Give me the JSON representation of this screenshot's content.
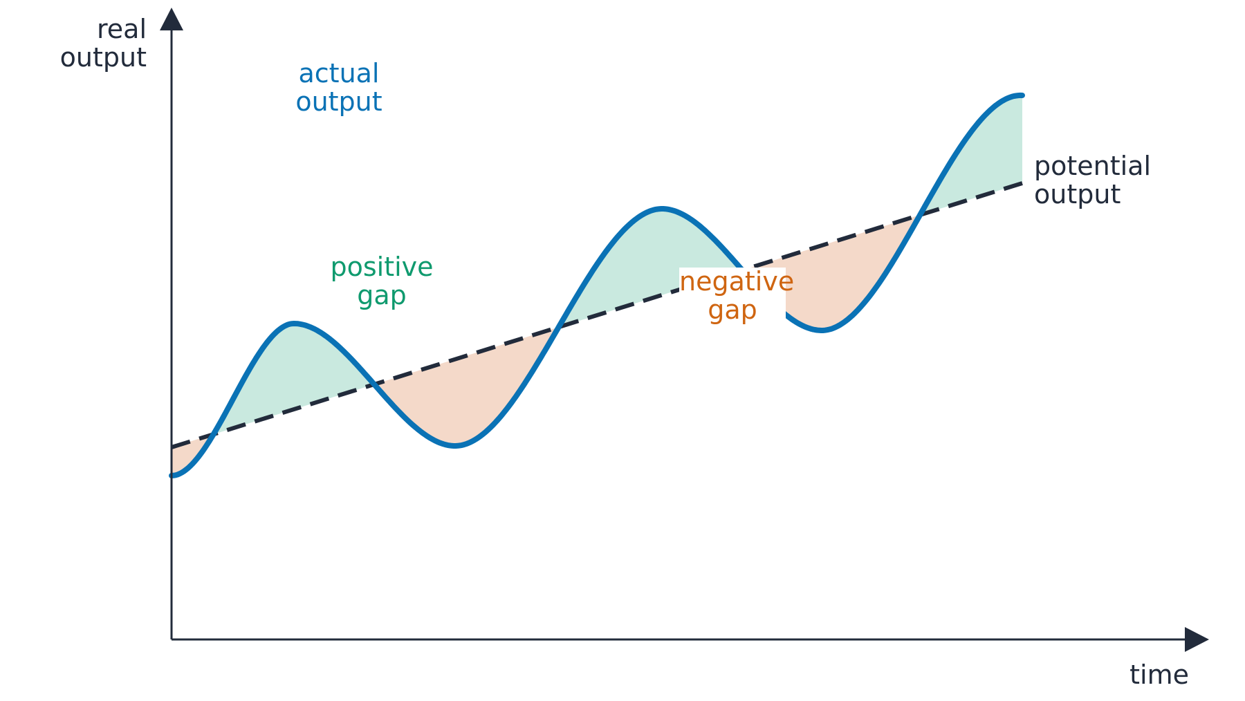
{
  "diagram": {
    "y_axis_label": [
      "real",
      "output"
    ],
    "x_axis_label": "time",
    "curves": {
      "actual_output": {
        "label": [
          "actual",
          "output"
        ],
        "color": "#0a72b5",
        "style": "solid",
        "shape": "oscillating wave around an upward trend"
      },
      "potential_output": {
        "label": [
          "potential",
          "output"
        ],
        "color": "#222b3b",
        "style": "dashed",
        "shape": "straight upward line"
      }
    },
    "regions": {
      "positive_gap": {
        "label": [
          "positive",
          "gap"
        ],
        "text_color": "#0f9a6e",
        "fill_color": "#c9e9df"
      },
      "negative_gap": {
        "label": [
          "negative",
          "gap"
        ],
        "text_color": "#cf6511",
        "fill_color": "#f4d9c9"
      }
    },
    "axis_color": "#222b3b"
  }
}
